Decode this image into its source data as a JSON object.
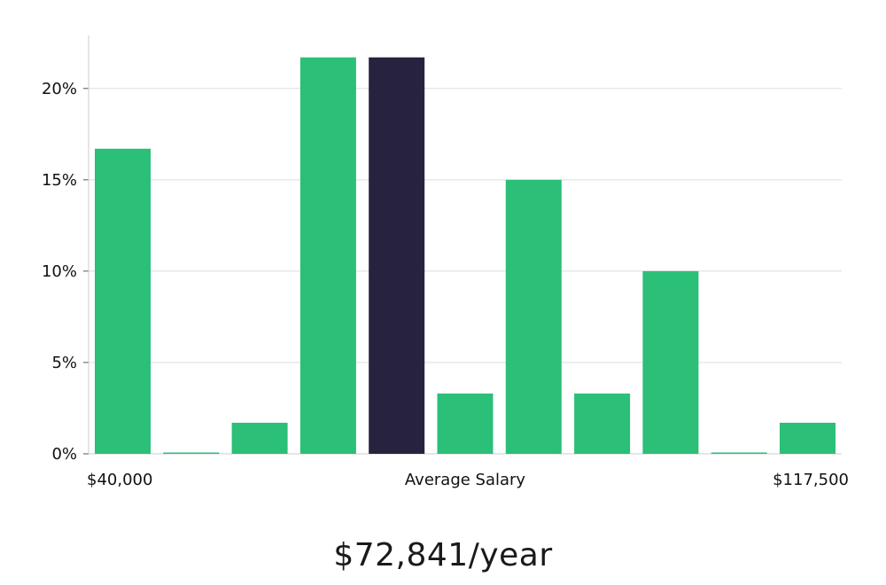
{
  "chart_data": {
    "type": "bar",
    "values": [
      16.7,
      0,
      1.7,
      21.7,
      21.7,
      3.3,
      15,
      3.3,
      10,
      0,
      1.7
    ],
    "highlight_index": 4,
    "ylim": [
      0,
      22.9
    ],
    "yticks": [
      0,
      5,
      10,
      15,
      20
    ],
    "ytick_labels": [
      "0%",
      "5%",
      "10%",
      "15%",
      "20%"
    ],
    "x_start_label": "$40,000",
    "x_center_label": "Average Salary",
    "x_end_label": "$117,500",
    "grid": true,
    "colors": {
      "bar": "#2bbf78",
      "highlight": "#27233f",
      "grid": "#dddddd",
      "axis": "#cccccc"
    }
  },
  "average_salary": "$72,841/year"
}
